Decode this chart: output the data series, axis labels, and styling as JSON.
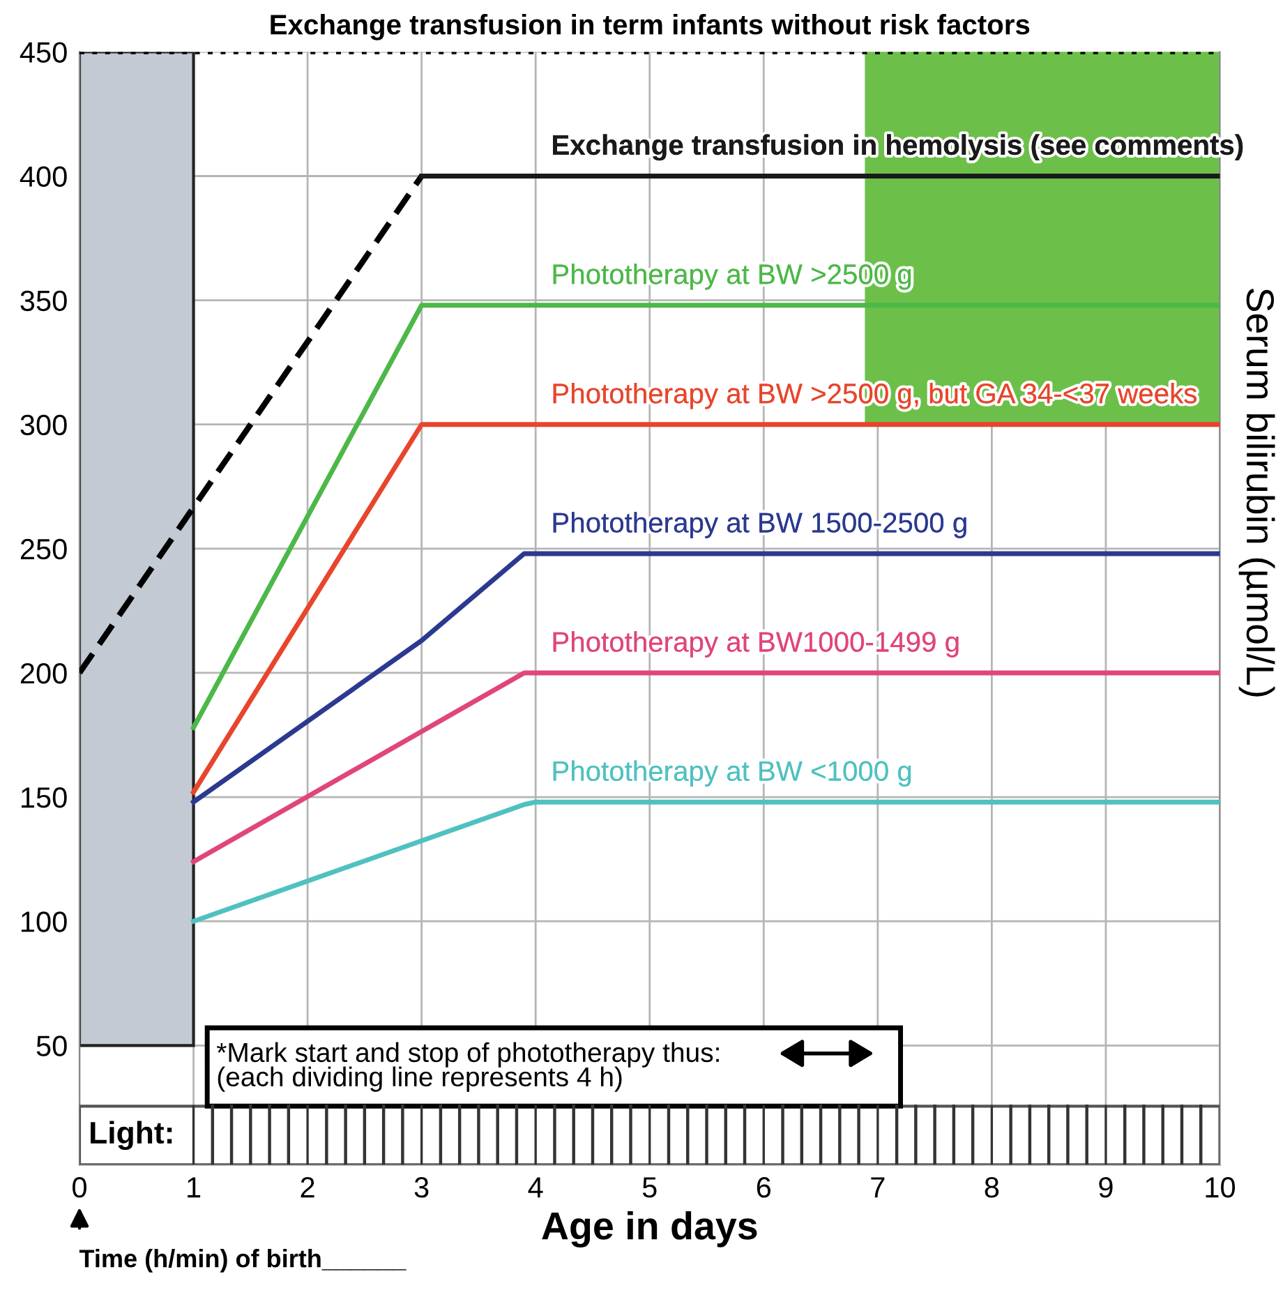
{
  "chart_data": {
    "type": "line",
    "xlabel": "Age in days",
    "ylabel": "Serum bilirubin (µmol/L)",
    "xlim": [
      0,
      10
    ],
    "xticks": [
      0,
      1,
      2,
      3,
      4,
      5,
      6,
      7,
      8,
      9,
      10
    ],
    "ylim": [
      2,
      450
    ],
    "yticks": [
      50,
      100,
      150,
      200,
      250,
      300,
      350,
      400,
      450
    ],
    "grid": true,
    "series": [
      {
        "type": "bar",
        "color": "#c3cad3",
        "x": [
          0.5
        ],
        "values": [
          400
        ],
        "base": [
          50
        ]
      },
      {
        "type": "bar",
        "color": "#6cc04a",
        "x": [
          8.45
        ],
        "values": [
          150
        ],
        "base": [
          300
        ]
      },
      {
        "color": "#000000",
        "line_style": "dashed",
        "x": [
          0,
          3
        ],
        "values": [
          200,
          400
        ]
      },
      {
        "name": "Exchange transfusion in hemolysis (see comments)",
        "color": "#1a1a1a",
        "x": [
          3,
          10
        ],
        "values": [
          400,
          400
        ]
      },
      {
        "name": "Phototherapy at BW >2500 g",
        "color": "#4cb848",
        "x": [
          1,
          3,
          10
        ],
        "values": [
          178,
          348,
          348
        ]
      },
      {
        "name": "Phototherapy at BW >2500 g, but GA 34-<37 weeks",
        "color": "#e8452c",
        "x": [
          1,
          3,
          10
        ],
        "values": [
          152,
          300,
          300
        ]
      },
      {
        "name": "Phototherapy at BW 1500-2500 g",
        "color": "#2b3990",
        "x": [
          1,
          3,
          3.9,
          10
        ],
        "values": [
          148,
          213,
          248,
          248
        ]
      },
      {
        "name": "Phototherapy at BW1000-1499 g",
        "color": "#e0457b",
        "x": [
          1,
          3.9,
          10
        ],
        "values": [
          124,
          200,
          200
        ]
      },
      {
        "name": "Phototherapy at BW <1000 g",
        "color": "#4fc1c0",
        "x": [
          1,
          3.9,
          4,
          10
        ],
        "values": [
          100,
          147,
          148,
          148
        ]
      }
    ],
    "ref_lines": [
      {
        "axis": "y",
        "value": 450,
        "label": "Exchange transfusion in term infants without risk factors",
        "color": "#000000",
        "line_style": "dotted"
      }
    ],
    "annotations": [
      "*Mark start and stop of phototherapy thus:\n(each dividing line represents 4 h)",
      "Light:",
      "Time (h/min) of birth______"
    ]
  }
}
